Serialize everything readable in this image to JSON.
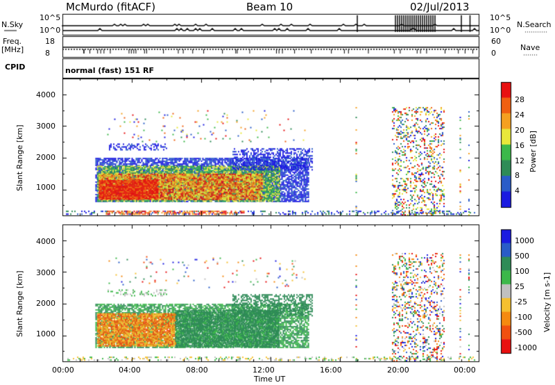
{
  "header": {
    "station": "McMurdo (fitACF)",
    "beam": "Beam 10",
    "date": "02/Jul/2013"
  },
  "summary_panels": {
    "nsky_label": "N.Sky",
    "freq_label_top": "Freq.",
    "freq_label_bottom": "[MHz]",
    "cpid_label": "CPID",
    "nsearch_label": "N.Search",
    "nave_label": "Nave",
    "noise_ticks_left": [
      "10^5",
      "10^0"
    ],
    "noise_ticks_right": [
      "10^5",
      "10^0"
    ],
    "freq_ticks": [
      "18",
      "8"
    ],
    "nave_ticks": [
      "60",
      "0"
    ],
    "cpid_text": "normal (fast) 151 RF"
  },
  "colors": {
    "power_scale": [
      "#1a1ae0",
      "#2a5cc8",
      "#2e8b57",
      "#3cb84a",
      "#e8e83a",
      "#f5a020",
      "#f06010",
      "#e81010"
    ],
    "velocity_scale": [
      "#1a1ae0",
      "#2a5cc8",
      "#2e8b57",
      "#3cb84a",
      "#c0c0c0",
      "#f5c030",
      "#f58a10",
      "#f05010",
      "#e81010"
    ]
  },
  "chart_data": [
    {
      "type": "heatmap",
      "panel": "power",
      "ylabel": "Slant Range [km]",
      "xlabel": "Time UT",
      "x_ticks": [
        "00:00",
        "04:00",
        "08:00",
        "12:00",
        "16:00",
        "20:00",
        "00:00"
      ],
      "y_ticks": [
        "1000",
        "2000",
        "3000",
        "4000"
      ],
      "ylim": [
        180,
        4500
      ],
      "xlim_hours": [
        0,
        24
      ],
      "colorbar": {
        "label": "Power [dB]",
        "ticks": [
          "4",
          "8",
          "12",
          "16",
          "20",
          "24",
          "28"
        ],
        "range": [
          0,
          30
        ]
      },
      "echo_regions": [
        {
          "t_start": 1.8,
          "t_end": 11.4,
          "r_min": 700,
          "r_max": 1700,
          "value_range": [
            20,
            30
          ],
          "note": "main band"
        },
        {
          "t_start": 1.8,
          "t_end": 14.0,
          "r_min": 500,
          "r_max": 2000,
          "value_range": [
            4,
            16
          ],
          "note": "halo"
        },
        {
          "t_start": 2.5,
          "t_end": 14.5,
          "r_min": 2200,
          "r_max": 2500,
          "value_range": [
            4,
            12
          ],
          "note": "upper scatter"
        },
        {
          "t_start": 19.0,
          "t_end": 22.0,
          "r_min": 180,
          "r_max": 3600,
          "value_range": [
            4,
            30
          ],
          "note": "vertical streaks"
        },
        {
          "t_start": 0.0,
          "t_end": 24.0,
          "r_min": 180,
          "r_max": 350,
          "value_range": [
            4,
            30
          ],
          "note": "ground scatter"
        }
      ]
    },
    {
      "type": "heatmap",
      "panel": "velocity",
      "ylabel": "Slant Range [km]",
      "xlabel": "Time UT",
      "x_ticks": [
        "00:00",
        "04:00",
        "08:00",
        "12:00",
        "16:00",
        "20:00",
        "00:00"
      ],
      "y_ticks": [
        "1000",
        "2000",
        "3000",
        "4000"
      ],
      "ylim": [
        180,
        4500
      ],
      "xlim_hours": [
        0,
        24
      ],
      "colorbar": {
        "label": "Velocity [m s-1]",
        "ticks": [
          "1000",
          "500",
          "100",
          "25",
          "-25",
          "-100",
          "-500",
          "-1000"
        ],
        "range": [
          -1000,
          1000
        ]
      },
      "echo_regions": [
        {
          "t_start": 1.8,
          "t_end": 6.5,
          "r_min": 600,
          "r_max": 1700,
          "value_range": [
            -500,
            -100
          ],
          "note": "orange negative"
        },
        {
          "t_start": 6.5,
          "t_end": 14.0,
          "r_min": 600,
          "r_max": 2000,
          "value_range": [
            25,
            100
          ],
          "note": "green positive"
        },
        {
          "t_start": 19.0,
          "t_end": 22.0,
          "r_min": 180,
          "r_max": 3600,
          "value_range": [
            -1000,
            1000
          ],
          "note": "vertical streaks"
        }
      ]
    }
  ],
  "xlabel_text": "Time UT"
}
